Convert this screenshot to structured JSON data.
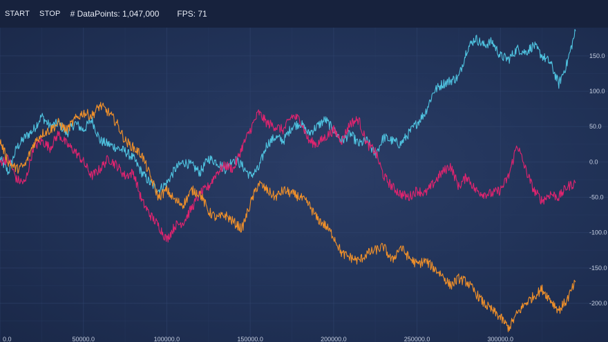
{
  "toolbar": {
    "start_label": "START",
    "stop_label": "STOP",
    "datapoints_text": "# DataPoints: 1,047,000",
    "fps_text": "FPS: 71"
  },
  "colors": {
    "background": "#1b2a4a",
    "toolbar": "#17223d",
    "series_cyan": "#4fc3e0",
    "series_pink": "#e0246f",
    "series_orange": "#f0902a"
  },
  "chart_data": {
    "type": "line",
    "xlim": [
      0,
      350000
    ],
    "ylim": [
      -245,
      190
    ],
    "grid": true,
    "x_axis_position": "bottom",
    "y_axis_position": "right",
    "x_ticks": [
      "0.0",
      "50000.0",
      "100000.0",
      "150000.0",
      "200000.0",
      "250000.0",
      "300000.0"
    ],
    "x_tick_values": [
      0,
      50000,
      100000,
      150000,
      200000,
      250000,
      300000
    ],
    "y_ticks": [
      "150.0",
      "100.0",
      "50.0",
      "0.0",
      "-50.0",
      "-100.0",
      "-150.0",
      "-200.0"
    ],
    "y_tick_values": [
      150,
      100,
      50,
      0,
      -50,
      -100,
      -150,
      -200
    ],
    "series": [
      {
        "color": "#4fc3e0",
        "x": [
          0,
          5000,
          10000,
          15000,
          20000,
          25000,
          30000,
          35000,
          40000,
          45000,
          50000,
          55000,
          60000,
          65000,
          70000,
          75000,
          80000,
          85000,
          90000,
          95000,
          100000,
          105000,
          110000,
          115000,
          120000,
          125000,
          130000,
          135000,
          140000,
          145000,
          150000,
          155000,
          160000,
          165000,
          170000,
          175000,
          180000,
          185000,
          190000,
          195000,
          200000,
          205000,
          210000,
          215000,
          220000,
          225000,
          230000,
          235000,
          240000,
          245000,
          250000,
          255000,
          260000,
          265000,
          270000,
          275000,
          280000,
          285000,
          290000,
          295000,
          300000,
          305000,
          310000,
          315000,
          320000,
          325000,
          330000,
          335000,
          340000,
          345000
        ],
        "y": [
          5,
          -15,
          20,
          35,
          45,
          65,
          50,
          55,
          40,
          55,
          45,
          60,
          30,
          25,
          20,
          15,
          5,
          -15,
          -30,
          -40,
          -30,
          -10,
          0,
          -5,
          -15,
          5,
          0,
          -10,
          5,
          -5,
          -20,
          -10,
          25,
          35,
          30,
          50,
          55,
          40,
          50,
          60,
          45,
          30,
          40,
          25,
          30,
          10,
          35,
          30,
          25,
          40,
          55,
          70,
          100,
          110,
          115,
          120,
          160,
          175,
          165,
          170,
          150,
          145,
          160,
          155,
          165,
          150,
          140,
          110,
          140,
          185
        ]
      },
      {
        "color": "#e0246f",
        "x": [
          0,
          5000,
          10000,
          15000,
          20000,
          25000,
          30000,
          35000,
          40000,
          45000,
          50000,
          55000,
          60000,
          65000,
          70000,
          75000,
          80000,
          85000,
          90000,
          95000,
          100000,
          105000,
          110000,
          115000,
          120000,
          125000,
          130000,
          135000,
          140000,
          145000,
          150000,
          155000,
          160000,
          165000,
          170000,
          175000,
          180000,
          185000,
          190000,
          195000,
          200000,
          205000,
          210000,
          215000,
          220000,
          225000,
          230000,
          235000,
          240000,
          245000,
          250000,
          255000,
          260000,
          265000,
          270000,
          275000,
          280000,
          285000,
          290000,
          295000,
          300000,
          305000,
          310000,
          315000,
          320000,
          325000,
          330000,
          335000,
          340000,
          345000
        ],
        "y": [
          0,
          5,
          -25,
          -30,
          20,
          30,
          20,
          40,
          25,
          15,
          0,
          -20,
          -10,
          5,
          -5,
          -20,
          -15,
          -55,
          -75,
          -90,
          -110,
          -90,
          -85,
          -65,
          -45,
          -35,
          -15,
          -5,
          -10,
          20,
          45,
          70,
          55,
          50,
          45,
          65,
          60,
          30,
          25,
          35,
          45,
          30,
          55,
          60,
          25,
          15,
          -20,
          -35,
          -45,
          -50,
          -40,
          -45,
          -30,
          -15,
          -5,
          -35,
          -20,
          -40,
          -45,
          -45,
          -40,
          -20,
          25,
          -10,
          -40,
          -55,
          -45,
          -50,
          -35,
          -30
        ]
      },
      {
        "color": "#f0902a",
        "x": [
          0,
          5000,
          10000,
          15000,
          20000,
          25000,
          30000,
          35000,
          40000,
          45000,
          50000,
          55000,
          60000,
          65000,
          70000,
          75000,
          80000,
          85000,
          90000,
          95000,
          100000,
          105000,
          110000,
          115000,
          120000,
          125000,
          130000,
          135000,
          140000,
          145000,
          150000,
          155000,
          160000,
          165000,
          170000,
          175000,
          180000,
          185000,
          190000,
          195000,
          200000,
          205000,
          210000,
          215000,
          220000,
          225000,
          230000,
          235000,
          240000,
          245000,
          250000,
          255000,
          260000,
          265000,
          270000,
          275000,
          280000,
          285000,
          290000,
          295000,
          300000,
          305000,
          310000,
          315000,
          320000,
          325000,
          330000,
          335000,
          340000,
          345000
        ],
        "y": [
          30,
          0,
          -10,
          -5,
          25,
          40,
          45,
          55,
          45,
          60,
          70,
          65,
          80,
          70,
          55,
          30,
          20,
          10,
          -20,
          -50,
          -40,
          -55,
          -60,
          -40,
          -45,
          -70,
          -80,
          -75,
          -85,
          -95,
          -60,
          -30,
          -40,
          -50,
          -40,
          -45,
          -50,
          -60,
          -80,
          -90,
          -105,
          -130,
          -135,
          -140,
          -130,
          -125,
          -120,
          -140,
          -120,
          -135,
          -145,
          -140,
          -150,
          -160,
          -175,
          -165,
          -170,
          -185,
          -200,
          -210,
          -220,
          -235,
          -215,
          -200,
          -190,
          -180,
          -195,
          -210,
          -195,
          -170
        ]
      }
    ]
  }
}
